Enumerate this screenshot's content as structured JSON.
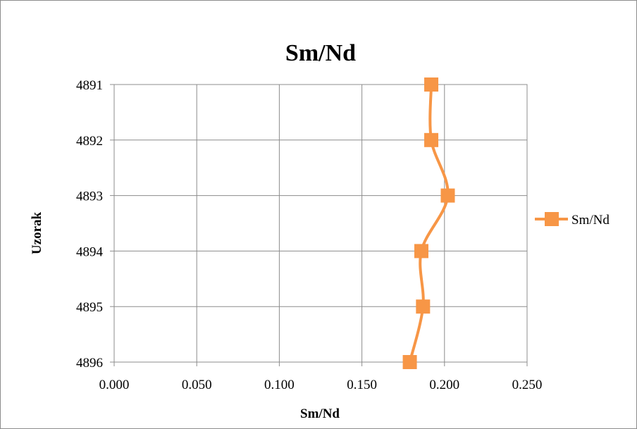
{
  "chart_data": {
    "type": "line",
    "title": "Sm/Nd",
    "xlabel": "Sm/Nd",
    "ylabel": "Uzorak",
    "xlim": [
      0,
      0.25
    ],
    "x_ticks": [
      "0.000",
      "0.050",
      "0.100",
      "0.150",
      "0.200",
      "0.250"
    ],
    "categories": [
      "4891",
      "4892",
      "4893",
      "4894",
      "4895",
      "4896"
    ],
    "orientation": "vertical-categories",
    "grid": true,
    "legend": "right",
    "series": [
      {
        "name": "Sm/Nd",
        "color": "#f79646",
        "marker": "square",
        "values": [
          0.192,
          0.192,
          0.202,
          0.186,
          0.187,
          0.179
        ]
      }
    ]
  }
}
